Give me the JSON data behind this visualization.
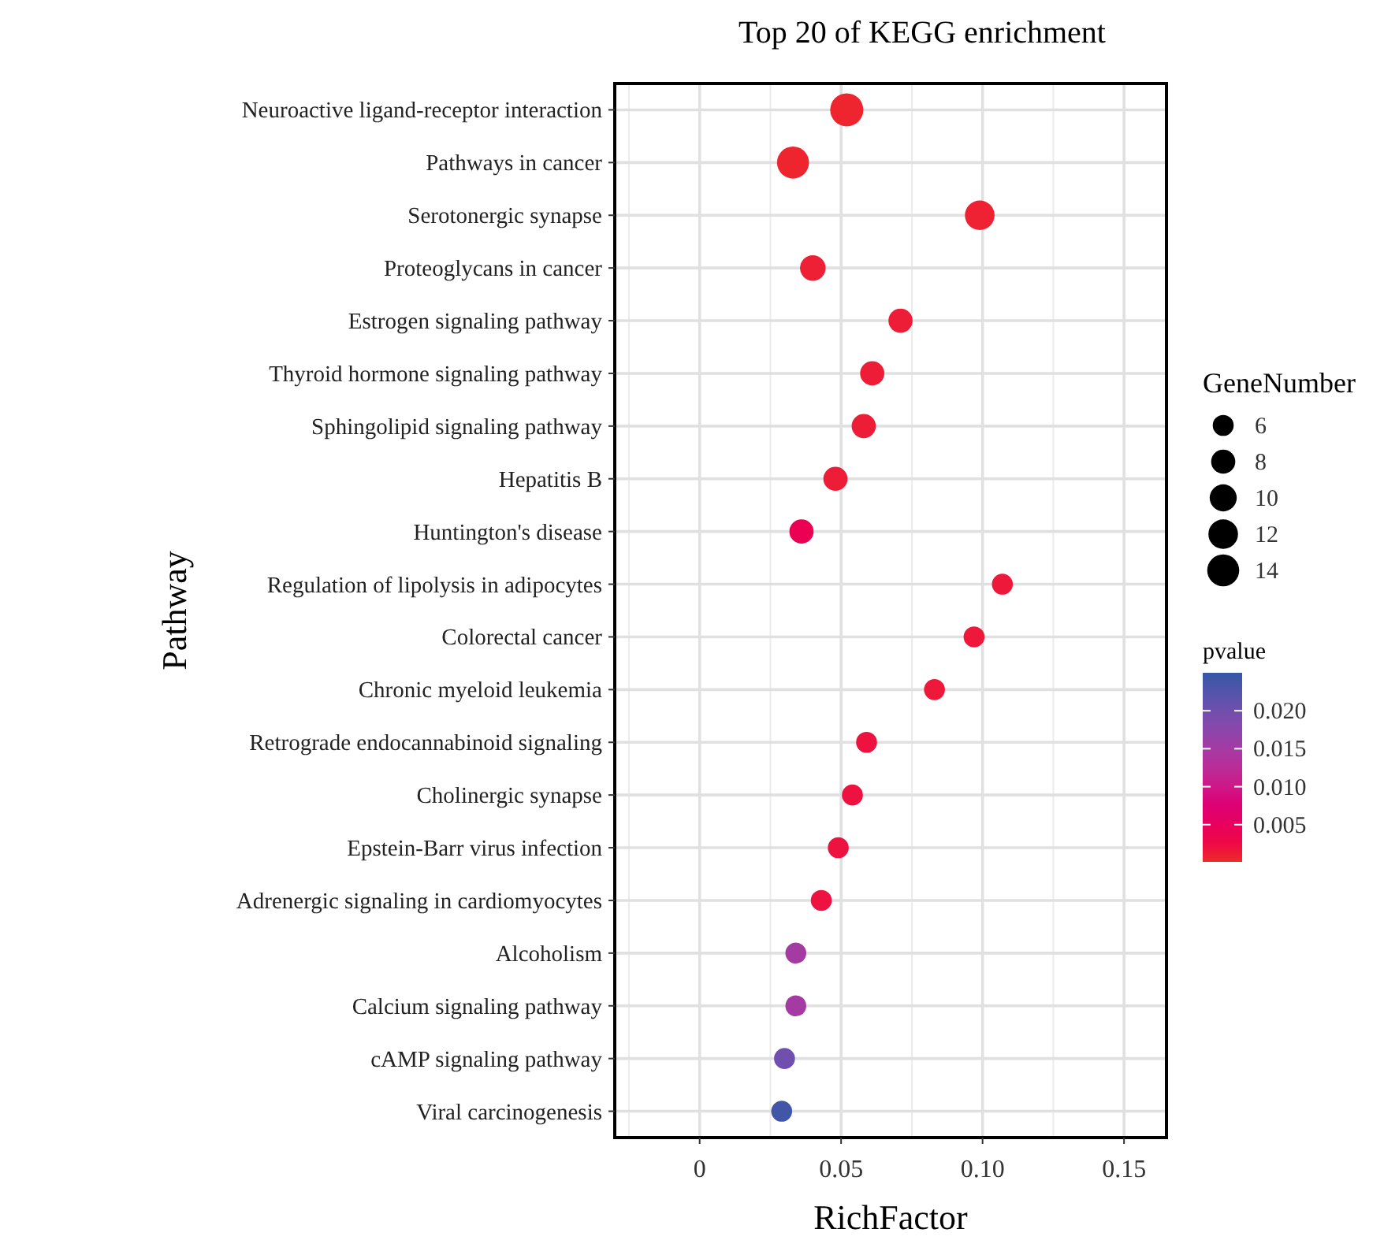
{
  "chart_data": {
    "type": "bubble",
    "title": "Top 20 of KEGG enrichment",
    "xlabel": "RichFactor",
    "ylabel": "Pathway",
    "orientation": "horizontal",
    "grid": true,
    "legend_title": "GeneNumber",
    "clabel": "pvalue",
    "categories": [
      "Neuroactive ligand-receptor interaction",
      "Pathways in cancer",
      "Serotonergic synapse",
      "Proteoglycans in cancer",
      "Estrogen signaling pathway",
      "Thyroid hormone signaling pathway",
      "Sphingolipid signaling pathway",
      "Hepatitis B",
      "Huntington's disease",
      "Regulation of lipolysis in adipocytes",
      "Colorectal cancer",
      "Chronic myeloid leukemia",
      "Retrograde endocannabinoid signaling",
      "Cholinergic synapse",
      "Epstein-Barr virus infection",
      "Adrenergic signaling in cardiomyocytes",
      "Alcoholism",
      "Calcium signaling pathway",
      "cAMP signaling pathway",
      "Viral carcinogenesis"
    ],
    "values": [
      0.052,
      0.033,
      0.099,
      0.04,
      0.071,
      0.061,
      0.058,
      0.048,
      0.036,
      0.107,
      0.097,
      0.083,
      0.059,
      0.054,
      0.049,
      0.043,
      0.034,
      0.034,
      0.03,
      0.029
    ],
    "sizes": [
      15,
      14,
      12,
      9,
      8,
      8,
      8,
      8,
      8,
      6,
      6,
      6,
      6,
      6,
      6,
      6,
      6,
      6,
      6,
      6
    ],
    "cvalues": [
      0.0005,
      0.0005,
      0.0008,
      0.001,
      0.0012,
      0.0012,
      0.0012,
      0.0012,
      0.004,
      0.0015,
      0.0015,
      0.0015,
      0.002,
      0.002,
      0.002,
      0.002,
      0.015,
      0.015,
      0.02,
      0.024
    ],
    "size_legend": [
      6,
      8,
      10,
      12,
      14
    ],
    "xlim": [
      -0.03,
      0.165
    ],
    "xticks": [
      0,
      0.05,
      {
        "value": 0.1,
        "label": "0.10"
      },
      0.15
    ],
    "clim": [
      0.0001,
      0.025
    ],
    "cticks": [
      {
        "value": 0.005,
        "label": "0.005"
      },
      {
        "value": 0.01,
        "label": "0.010"
      },
      {
        "value": 0.015,
        "label": "0.015"
      },
      {
        "value": 0.02,
        "label": "0.020"
      }
    ]
  }
}
